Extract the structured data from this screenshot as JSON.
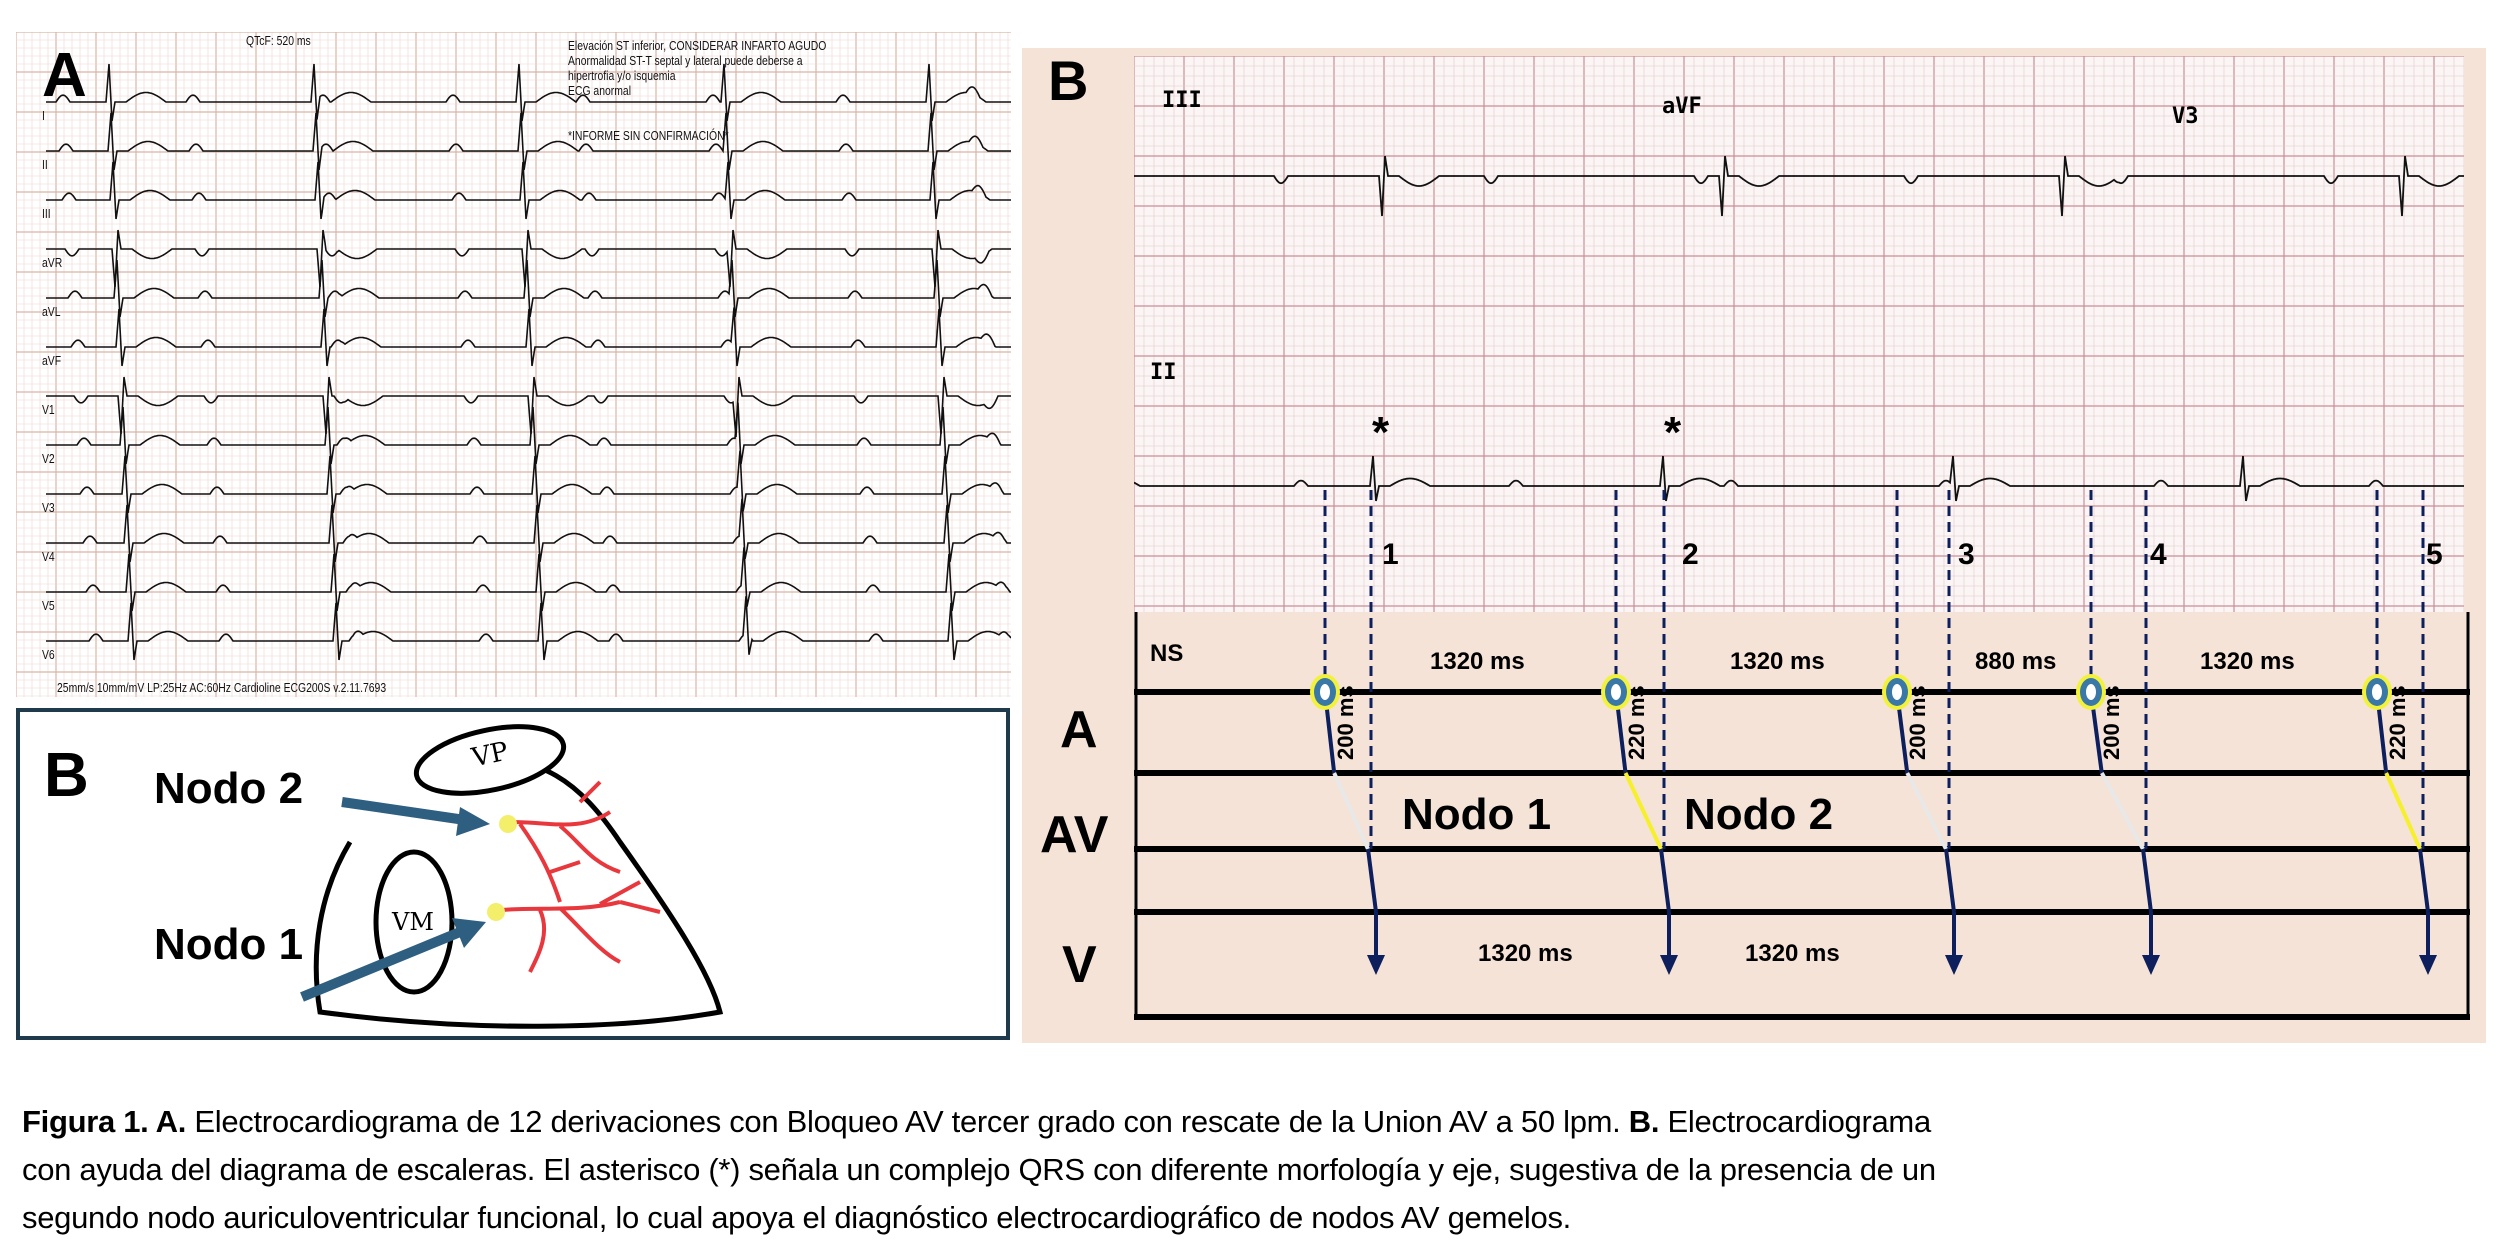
{
  "panel_a": {
    "label": "A",
    "qtcf": "QTcF:      520 ms",
    "interpretation": [
      "Elevación ST inferior, CONSIDERAR INFARTO AGUDO",
      "Anormalidad ST-T septal y lateral puede deberse a",
      "hipertrofia y/o isquemia",
      "ECG anormal"
    ],
    "unconfirmed": "*INFORME SIN CONFIRMACIÓN*",
    "footer": "25mm/s  10mm/mV  LP:25Hz AC:60Hz   Cardioline ECG200S v.2.11.7693",
    "leads": [
      "I",
      "II",
      "III",
      "aVR",
      "aVL",
      "aVF",
      "V1",
      "V2",
      "V3",
      "V4",
      "V5",
      "V6"
    ]
  },
  "panel_b_drawing": {
    "label": "B",
    "nodo2": "Nodo 2",
    "nodo1": "Nodo 1",
    "vp": "VP",
    "vm": "VM",
    "colors": {
      "arrow": "#2f5f80",
      "branches": "#e8383d",
      "node": "#f3ef6a"
    }
  },
  "panel_b": {
    "label": "B",
    "leads": {
      "top_1": "III",
      "top_2": "aVF",
      "top_3": "V3",
      "bottom": "II"
    },
    "asterisks": [
      "*",
      "*"
    ],
    "beat_numbers": [
      "1",
      "2",
      "3",
      "4",
      "5"
    ],
    "ladder": {
      "rows": [
        "A",
        "AV",
        "V"
      ],
      "ns_label": "NS",
      "pr_intervals": [
        "200 ms",
        "220 ms",
        "200 ms",
        "200 ms",
        "220 ms"
      ],
      "pp_intervals": [
        "1320 ms",
        "1320 ms",
        "880 ms",
        "1320 ms"
      ],
      "rr_intervals": [
        "1320 ms",
        "1320 ms"
      ],
      "node_labels": [
        "Nodo 1",
        "Nodo 2"
      ],
      "av_segment_nodes": [
        "Nodo 1",
        "Nodo 2",
        "Nodo 1",
        "Nodo 1",
        "Nodo 2"
      ],
      "colors": {
        "background": "#f5e3d8",
        "line": "#0d1f5c",
        "atrial_dot": "#3a78a8",
        "dot_ring": "#f2f23a",
        "nodo1": "#e8e8e8",
        "nodo2": "#f5f02a"
      }
    }
  },
  "caption": {
    "lines": [
      {
        "bold": "Figura 1. A.",
        "text": " Electrocardiograma de 12 derivaciones con Bloqueo AV tercer grado con rescate de la Union AV a 50 lpm.  ",
        "bold2": "B.",
        "text2": " Electrocardiograma"
      },
      {
        "text": "con ayuda del diagrama de escaleras. El asterisco (*) señala un complejo QRS con diferente morfología y eje, sugestiva de la presencia de un"
      },
      {
        "text": "segundo nodo auriculoventricular funcional, lo cual apoya el diagnóstico electrocardiográfico de nodos AV gemelos."
      }
    ]
  }
}
